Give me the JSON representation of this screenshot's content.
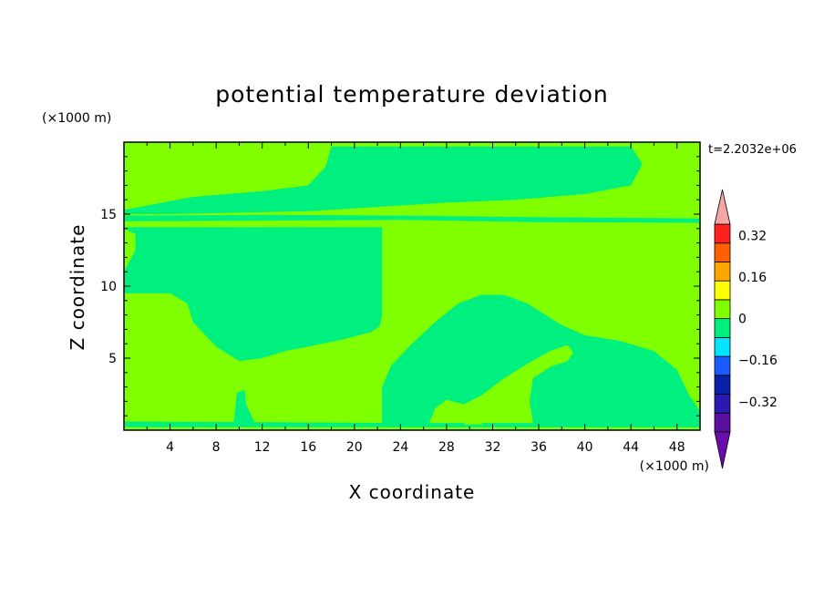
{
  "chart_data": {
    "type": "heatmap",
    "title": "potential temperature deviation",
    "xlabel": "X coordinate",
    "ylabel": "Z coordinate",
    "x_unit": "(×1000 m)",
    "y_unit": "(×1000 m)",
    "time_label": "t=2.2032e+06",
    "xlim": [
      0,
      50
    ],
    "ylim": [
      0,
      20
    ],
    "x_ticks": [
      4,
      8,
      12,
      16,
      20,
      24,
      28,
      32,
      36,
      40,
      44,
      48
    ],
    "y_ticks": [
      5,
      10,
      15
    ],
    "x_tick_labels": [
      "4",
      "8",
      "12",
      "16",
      "20",
      "24",
      "28",
      "32",
      "36",
      "40",
      "44",
      "48"
    ],
    "y_tick_labels": [
      "5",
      "10",
      "15"
    ],
    "colorbar": {
      "levels": [
        -0.4,
        -0.32,
        -0.24,
        -0.16,
        -0.08,
        0,
        0.08,
        0.16,
        0.24,
        0.32,
        0.4
      ],
      "tick_labels": [
        "0.32",
        "0.16",
        "0",
        "−0.16",
        "−0.32"
      ],
      "tick_values": [
        0.32,
        0.16,
        0,
        -0.16,
        -0.32
      ],
      "colors": [
        "#5b0fa0",
        "#2a1ab0",
        "#0a1fa8",
        "#1a5bff",
        "#00e5ff",
        "#00f080",
        "#80ff00",
        "#ffff00",
        "#ffa500",
        "#ff6000",
        "#ff2020"
      ],
      "under_color": "#6a0dad",
      "over_color": "#f4a6a6"
    },
    "background_level_color": "#80ff00",
    "regions": [
      {
        "label": "upper-left negative band",
        "value_range": [
          -0.08,
          0
        ],
        "color": "#00f080",
        "points": [
          [
            0,
            15.3
          ],
          [
            6,
            16.2
          ],
          [
            12,
            16.6
          ],
          [
            16,
            17
          ],
          [
            17.5,
            18.3
          ],
          [
            18,
            19.7
          ],
          [
            44,
            19.7
          ],
          [
            45,
            18.5
          ],
          [
            44,
            17
          ],
          [
            40,
            16.4
          ],
          [
            34,
            16
          ],
          [
            28,
            15.8
          ],
          [
            22,
            15.5
          ],
          [
            16,
            15.2
          ],
          [
            10,
            15.1
          ],
          [
            4,
            15.0
          ],
          [
            0,
            15.0
          ]
        ]
      },
      {
        "label": "thin stratified strip",
        "value_range": [
          -0.08,
          0
        ],
        "color": "#00f080",
        "points": [
          [
            0,
            14.9
          ],
          [
            12,
            14.95
          ],
          [
            24,
            14.9
          ],
          [
            36,
            14.8
          ],
          [
            50,
            14.7
          ],
          [
            50,
            14.4
          ],
          [
            36,
            14.45
          ],
          [
            24,
            14.6
          ],
          [
            12,
            14.55
          ],
          [
            0,
            14.5
          ]
        ]
      },
      {
        "label": "left negative core",
        "value_range": [
          -0.08,
          0
        ],
        "color": "#00f080",
        "points": [
          [
            0,
            14.1
          ],
          [
            22.4,
            14.1
          ],
          [
            22.4,
            8
          ],
          [
            22.2,
            7.2
          ],
          [
            21.4,
            6.8
          ],
          [
            19,
            6.3
          ],
          [
            16,
            5.8
          ],
          [
            14,
            5.5
          ],
          [
            12,
            5
          ],
          [
            10,
            4.8
          ],
          [
            8,
            5.8
          ],
          [
            6,
            7.5
          ],
          [
            5.5,
            8.8
          ],
          [
            4,
            9.5
          ],
          [
            0,
            9.5
          ],
          [
            0,
            11
          ],
          [
            1,
            12.5
          ],
          [
            1,
            13.6
          ],
          [
            0,
            14
          ]
        ]
      },
      {
        "label": "right negative dome",
        "value_range": [
          -0.08,
          0
        ],
        "color": "#00f080",
        "points": [
          [
            22.4,
            0.2
          ],
          [
            22.4,
            3
          ],
          [
            23.2,
            4.5
          ],
          [
            25,
            6
          ],
          [
            27,
            7.5
          ],
          [
            29,
            8.8
          ],
          [
            31,
            9.4
          ],
          [
            33,
            9.4
          ],
          [
            35,
            8.8
          ],
          [
            38,
            7.3
          ],
          [
            40,
            6.6
          ],
          [
            43,
            6.2
          ],
          [
            46,
            5.5
          ],
          [
            48,
            4.2
          ],
          [
            49,
            2.5
          ],
          [
            50,
            1.3
          ],
          [
            50,
            0.2
          ]
        ]
      },
      {
        "label": "surface negative layer",
        "value_range": [
          -0.08,
          0
        ],
        "color": "#00f080",
        "points": [
          [
            0,
            0.2
          ],
          [
            50,
            0.2
          ],
          [
            50,
            0.5
          ],
          [
            36,
            0.55
          ],
          [
            24,
            0.5
          ],
          [
            12,
            0.55
          ],
          [
            0,
            0.6
          ]
        ]
      },
      {
        "label": "near-surface bump",
        "value_range": [
          -0.08,
          0
        ],
        "color": "#00f080",
        "points": [
          [
            9.5,
            0.3
          ],
          [
            9.8,
            2.6
          ],
          [
            10.5,
            2.8
          ],
          [
            10.6,
            1.8
          ],
          [
            11.3,
            0.6
          ],
          [
            11.5,
            0.3
          ]
        ]
      }
    ],
    "positive_islands": [
      {
        "label": "positive tongue inside dome",
        "value_range": [
          0,
          0.08
        ],
        "color": "#80ff00",
        "points": [
          [
            26.5,
            0.5
          ],
          [
            27,
            1.5
          ],
          [
            28,
            2.1
          ],
          [
            29.5,
            1.8
          ],
          [
            31,
            2.4
          ],
          [
            33,
            3.6
          ],
          [
            35,
            4.6
          ],
          [
            37,
            5.5
          ],
          [
            38.5,
            5.9
          ],
          [
            39,
            5.4
          ],
          [
            38.5,
            4.8
          ],
          [
            37,
            4.4
          ],
          [
            35.5,
            3.6
          ],
          [
            35.2,
            2
          ],
          [
            35.5,
            0.5
          ]
        ]
      },
      {
        "label": "small positive patch",
        "value_range": [
          0,
          0.08
        ],
        "color": "#80ff00",
        "points": [
          [
            29.5,
            0.4
          ],
          [
            30.2,
            1.0
          ],
          [
            30.8,
            0.6
          ],
          [
            31.2,
            0.4
          ]
        ]
      }
    ]
  }
}
